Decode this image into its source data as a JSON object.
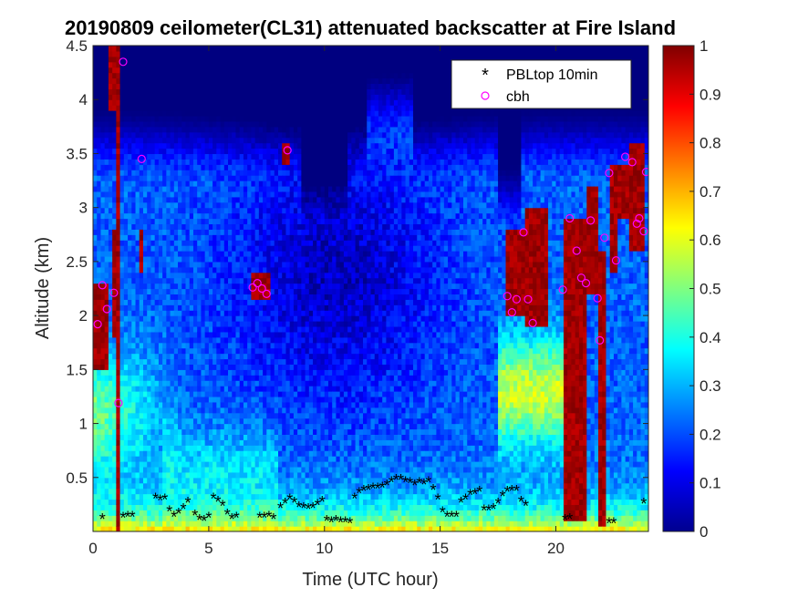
{
  "chart_data": {
    "type": "heatmap",
    "title": "20190809 ceilometer(CL31) attenuated backscatter at Fire Island",
    "xlabel": "Time (UTC hour)",
    "ylabel": "Altitude (km)",
    "xlim": [
      0,
      24
    ],
    "ylim": [
      0,
      4.5
    ],
    "xticks": [
      "0",
      "5",
      "10",
      "15",
      "20"
    ],
    "xtick_values": [
      0,
      5,
      10,
      15,
      20
    ],
    "yticks": [
      "0.5",
      "1",
      "1.5",
      "2",
      "2.5",
      "3",
      "3.5",
      "4",
      "4.5"
    ],
    "ytick_values": [
      0.5,
      1,
      1.5,
      2,
      2.5,
      3,
      3.5,
      4,
      4.5
    ],
    "colorbar": {
      "colormap": "jet",
      "range": [
        0,
        1
      ],
      "ticks": [
        "0",
        "0.1",
        "0.2",
        "0.3",
        "0.4",
        "0.5",
        "0.6",
        "0.7",
        "0.8",
        "0.9",
        "1"
      ],
      "tick_values": [
        0,
        0.1,
        0.2,
        0.3,
        0.4,
        0.5,
        0.6,
        0.7,
        0.8,
        0.9,
        1
      ]
    },
    "legend": {
      "placement": "top-right",
      "entries": [
        {
          "label": "PBLtop 10min",
          "marker": "*",
          "color": "#000000"
        },
        {
          "label": "cbh",
          "marker": "o",
          "color": "#ff00ff"
        }
      ]
    },
    "series": [
      {
        "name": "PBLtop 10min",
        "x": [
          0.4,
          1.3,
          1.5,
          1.7,
          2.7,
          2.9,
          3.1,
          3.3,
          3.5,
          3.7,
          3.9,
          4.1,
          4.4,
          4.6,
          4.8,
          5.0,
          5.2,
          5.4,
          5.6,
          5.8,
          6.0,
          6.2,
          7.2,
          7.4,
          7.6,
          7.8,
          8.1,
          8.3,
          8.5,
          8.7,
          8.9,
          9.1,
          9.3,
          9.5,
          9.7,
          9.9,
          10.1,
          10.3,
          10.5,
          10.7,
          10.9,
          11.1,
          11.3,
          11.5,
          11.7,
          11.9,
          12.1,
          12.3,
          12.5,
          12.7,
          12.9,
          13.1,
          13.3,
          13.5,
          13.7,
          13.9,
          14.1,
          14.3,
          14.5,
          14.7,
          14.9,
          15.1,
          15.3,
          15.5,
          15.7,
          15.9,
          16.1,
          16.3,
          16.5,
          16.7,
          16.9,
          17.1,
          17.3,
          17.5,
          17.7,
          17.9,
          18.1,
          18.3,
          18.5,
          18.7,
          20.4,
          20.6,
          22.3,
          22.5,
          23.8
        ],
        "y": [
          0.12,
          0.13,
          0.14,
          0.14,
          0.31,
          0.29,
          0.3,
          0.19,
          0.14,
          0.17,
          0.21,
          0.27,
          0.15,
          0.11,
          0.1,
          0.13,
          0.31,
          0.28,
          0.24,
          0.16,
          0.12,
          0.13,
          0.13,
          0.13,
          0.14,
          0.12,
          0.22,
          0.26,
          0.3,
          0.27,
          0.23,
          0.22,
          0.21,
          0.22,
          0.25,
          0.28,
          0.1,
          0.09,
          0.1,
          0.09,
          0.09,
          0.08,
          0.31,
          0.36,
          0.38,
          0.39,
          0.4,
          0.4,
          0.41,
          0.43,
          0.46,
          0.48,
          0.48,
          0.46,
          0.45,
          0.43,
          0.45,
          0.44,
          0.46,
          0.39,
          0.3,
          0.18,
          0.14,
          0.14,
          0.14,
          0.27,
          0.3,
          0.34,
          0.35,
          0.37,
          0.2,
          0.2,
          0.21,
          0.26,
          0.33,
          0.37,
          0.38,
          0.38,
          0.28,
          0.24,
          0.11,
          0.12,
          0.08,
          0.08,
          0.26
        ]
      },
      {
        "name": "cbh",
        "x": [
          0.2,
          0.4,
          0.6,
          0.9,
          1.1,
          1.3,
          2.1,
          6.9,
          7.1,
          7.3,
          7.5,
          8.4,
          17.9,
          18.1,
          18.3,
          18.6,
          18.8,
          19.0,
          20.3,
          20.6,
          20.9,
          21.1,
          21.3,
          21.5,
          21.8,
          21.9,
          22.1,
          22.3,
          22.6,
          23.0,
          23.3,
          23.5,
          23.6,
          23.8,
          23.9
        ],
        "y": [
          1.92,
          2.28,
          2.06,
          2.21,
          1.19,
          4.35,
          3.45,
          2.26,
          2.3,
          2.25,
          2.2,
          3.53,
          2.18,
          2.03,
          2.15,
          2.77,
          2.15,
          1.93,
          2.24,
          2.9,
          2.6,
          2.35,
          2.3,
          2.88,
          2.16,
          1.77,
          2.72,
          3.32,
          2.51,
          3.47,
          3.42,
          2.85,
          2.9,
          2.78,
          3.33
        ]
      }
    ]
  }
}
